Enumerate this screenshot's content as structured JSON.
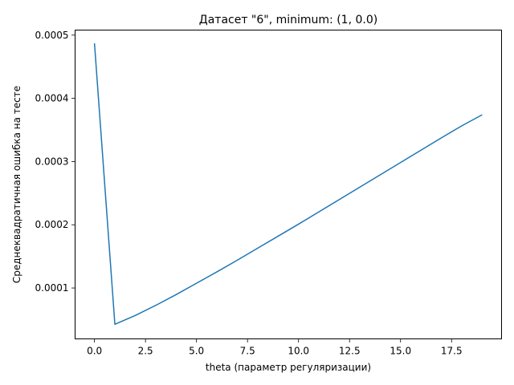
{
  "chart_data": {
    "type": "line",
    "title": "Датасет \"6\", minimum: (1, 0.0)",
    "xlabel": "theta (параметр регуляризации)",
    "ylabel": "Среднеквадратичная ошибка на тесте",
    "xlim": [
      -0.95,
      19.95
    ],
    "ylim": [
      1.95e-05,
      0.000508
    ],
    "x_ticks": [
      0.0,
      2.5,
      5.0,
      7.5,
      10.0,
      12.5,
      15.0,
      17.5
    ],
    "x_tick_labels": [
      "0.0",
      "2.5",
      "5.0",
      "7.5",
      "10.0",
      "12.5",
      "15.0",
      "17.5"
    ],
    "y_ticks": [
      0.0001,
      0.0002,
      0.0003,
      0.0004,
      0.0005
    ],
    "y_tick_labels": [
      "0.0001",
      "0.0002",
      "0.0003",
      "0.0004",
      "0.0005"
    ],
    "grid": false,
    "legend": false,
    "color": "#1f77b4",
    "series": [
      {
        "x": [
          0,
          1,
          2,
          3,
          4,
          5,
          6,
          7,
          8,
          9,
          10,
          11,
          12,
          13,
          14,
          15,
          16,
          17,
          18,
          19
        ],
        "values": [
          0.000487,
          4.25e-05,
          5.65e-05,
          7.25e-05,
          8.95e-05,
          0.0001075,
          0.0001255,
          0.000144,
          0.000163,
          0.000182,
          0.000201,
          0.0002205,
          0.00024,
          0.0002595,
          0.000279,
          0.0002985,
          0.000318,
          0.0003375,
          0.0003565,
          0.000374
        ]
      }
    ]
  }
}
